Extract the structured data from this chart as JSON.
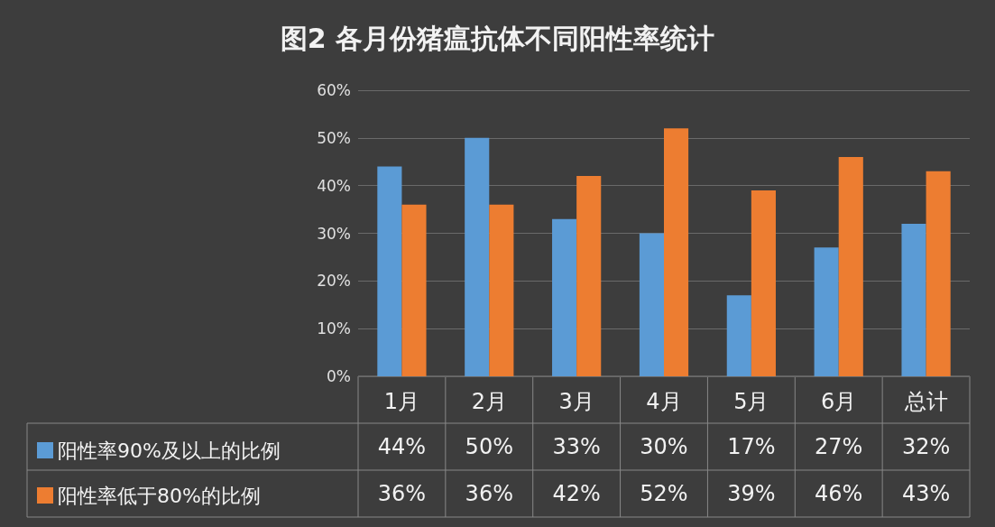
{
  "chart_data": {
    "type": "bar",
    "title": "图2 各月份猪瘟抗体不同阳性率统计",
    "categories": [
      "1月",
      "2月",
      "3月",
      "4月",
      "5月",
      "6月",
      "总计"
    ],
    "series": [
      {
        "name": "阳性率90%及以上的比例",
        "color": "#5b9bd5",
        "values": [
          44,
          50,
          33,
          30,
          17,
          27,
          32
        ],
        "value_labels": [
          "44%",
          "50%",
          "33%",
          "30%",
          "17%",
          "27%",
          "32%"
        ]
      },
      {
        "name": "阳性率低于80%的比例",
        "color": "#ed7d31",
        "values": [
          36,
          36,
          42,
          52,
          39,
          46,
          43
        ],
        "value_labels": [
          "36%",
          "36%",
          "42%",
          "52%",
          "39%",
          "46%",
          "43%"
        ]
      }
    ],
    "ylim": [
      0,
      60
    ],
    "yticks": [
      {
        "value": 0,
        "label": "0%"
      },
      {
        "value": 10,
        "label": "10%"
      },
      {
        "value": 20,
        "label": "20%"
      },
      {
        "value": 30,
        "label": "30%"
      },
      {
        "value": 40,
        "label": "40%"
      },
      {
        "value": 50,
        "label": "50%"
      },
      {
        "value": 60,
        "label": "60%"
      }
    ],
    "grid": "y",
    "legend": "bottom left"
  }
}
